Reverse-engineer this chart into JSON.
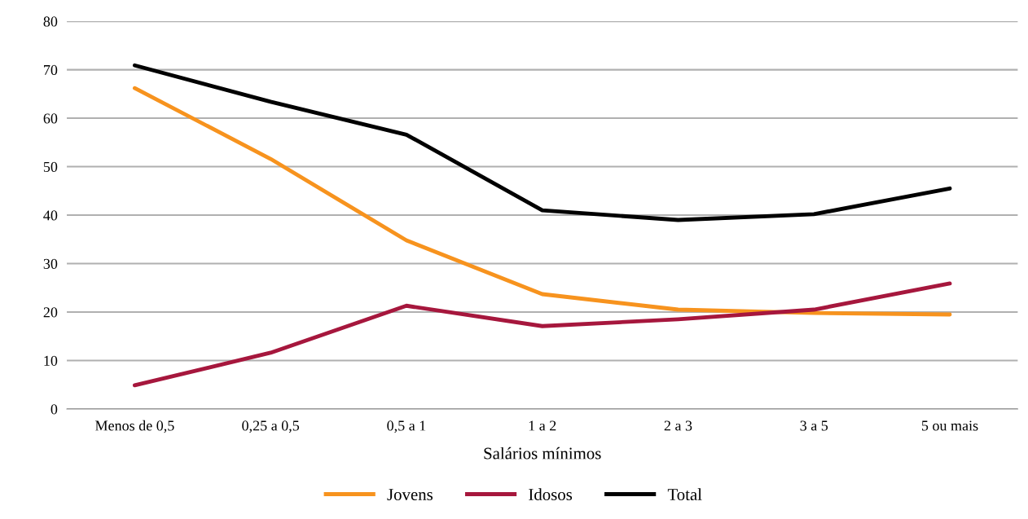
{
  "chart_data": {
    "type": "line",
    "xlabel": "Salários mínimos",
    "categories": [
      "Menos de 0,5",
      "0,25 a 0,5",
      "0,5 a 1",
      "1 a 2",
      "2 a 3",
      "3 a 5",
      "5 ou mais"
    ],
    "series": [
      {
        "name": "Jovens",
        "color": "#f7931e",
        "values": [
          66.2,
          51.6,
          34.8,
          23.7,
          20.5,
          19.8,
          19.5
        ]
      },
      {
        "name": "Idosos",
        "color": "#a6173d",
        "values": [
          4.9,
          11.6,
          21.3,
          17.1,
          18.5,
          20.5,
          25.9
        ]
      },
      {
        "name": "Total",
        "color": "#000000",
        "values": [
          70.9,
          63.4,
          56.6,
          41.0,
          39.0,
          40.2,
          45.5
        ]
      }
    ],
    "ylim": [
      0,
      80
    ],
    "yticks": [
      0,
      10,
      20,
      30,
      40,
      50,
      60,
      70,
      80
    ],
    "grid": "y",
    "legend": "bottom",
    "marker": "none",
    "line_style": "solid"
  }
}
